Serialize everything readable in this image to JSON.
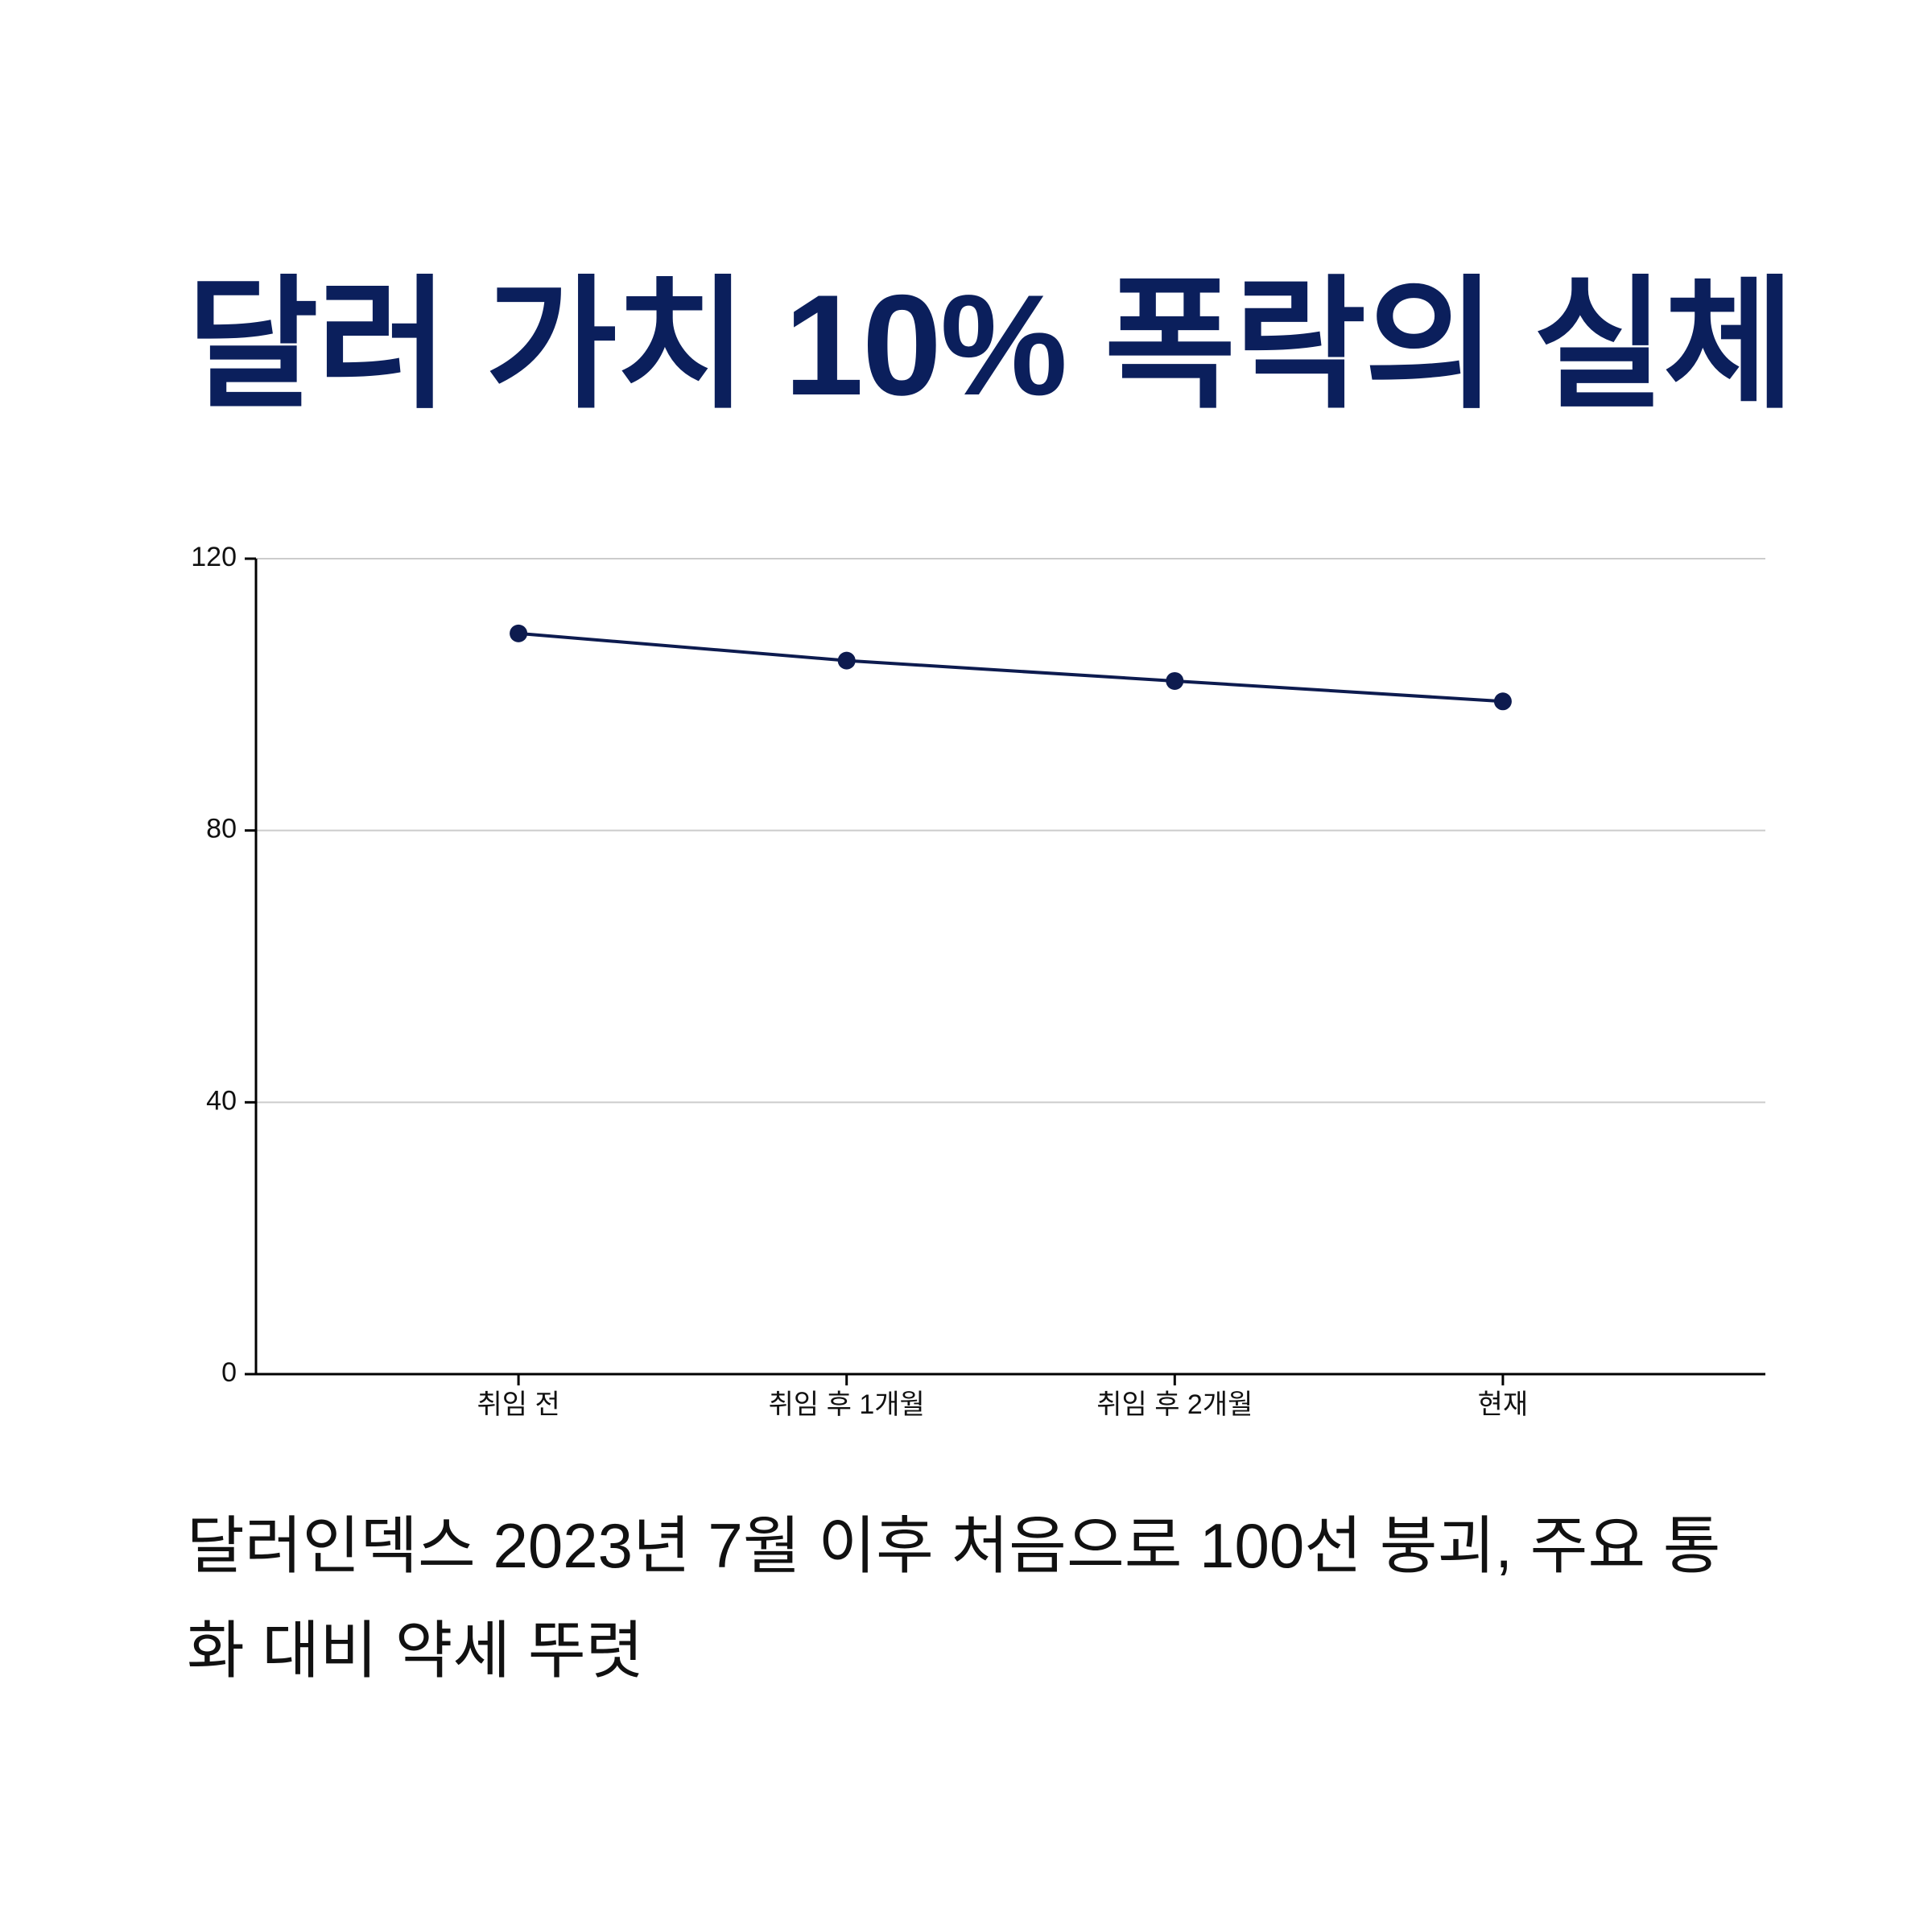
{
  "chart_data": {
    "type": "line",
    "title": "달러 가치 10% 폭락의 실체",
    "subtitle": "달러인덱스 2023년 7월 이후 처음으로 100선 붕괴, 주요 통화 대비 약세 뚜렷",
    "categories": [
      "취임 전",
      "취임 후 1개월",
      "취임 후 2개월",
      "현재"
    ],
    "series": [
      {
        "name": "달러인덱스",
        "color": "#0d1b4f",
        "values": [
          109,
          105,
          102,
          99
        ]
      }
    ],
    "ylim": [
      0,
      120
    ],
    "yticks": [
      0,
      40,
      80,
      120
    ],
    "grid": true
  }
}
